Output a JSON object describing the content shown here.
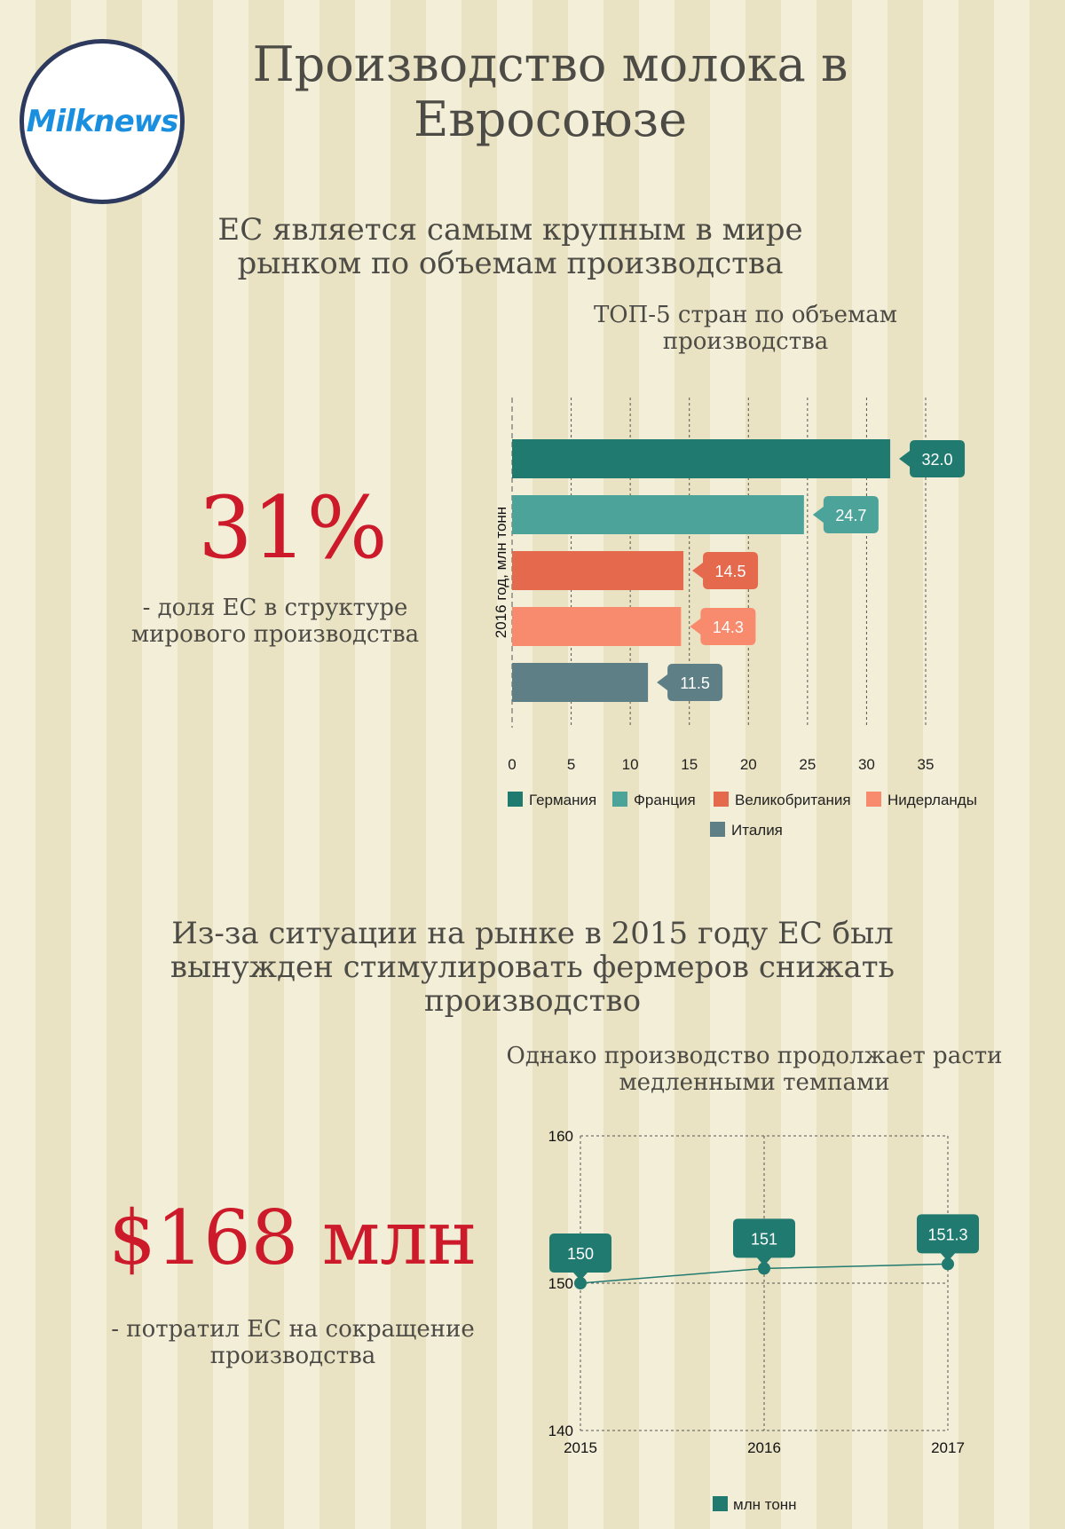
{
  "logo": {
    "text": "Milknews"
  },
  "header": {
    "title": "Производство молока в Евросоюзе"
  },
  "section1": {
    "subtitle": "ЕС является самым крупным в мире рынком по объемам производства",
    "stat_value": "31%",
    "stat_desc": "- доля ЕС в структуре мирового производства"
  },
  "section2": {
    "subtitle": "Из-за ситуации на рынке в 2015 году ЕС был вынужден стимулировать фермеров снижать производство",
    "stat_value": "$168 млн",
    "stat_desc": "- потратил ЕС на сокращение производства"
  },
  "chart_data": [
    {
      "type": "bar",
      "orientation": "horizontal",
      "title": "ТОП-5 стран по объемам производства",
      "ylabel": "2016 год, млн тонн",
      "xlim": [
        0,
        35
      ],
      "xticks": [
        0,
        5,
        10,
        15,
        20,
        25,
        30,
        35
      ],
      "grid": true,
      "legend_position": "bottom",
      "categories": [
        "Германия",
        "Франция",
        "Великобритания",
        "Нидерланды",
        "Италия"
      ],
      "values": [
        32.0,
        24.7,
        14.5,
        14.3,
        11.5
      ],
      "value_labels": [
        "32.0",
        "24.7",
        "14.5",
        "14.3",
        "11.5"
      ],
      "colors": [
        "#217a6f",
        "#4ba39a",
        "#e4694d",
        "#f88a6d",
        "#5e7f85"
      ]
    },
    {
      "type": "line",
      "title": "Однако производство продолжает расти медленными темпами",
      "x": [
        "2015",
        "2016",
        "2017"
      ],
      "ylim": [
        140,
        160
      ],
      "yticks": [
        140,
        150,
        160
      ],
      "grid": true,
      "legend_position": "bottom",
      "series": [
        {
          "name": "млн тонн",
          "values": [
            150,
            151,
            151.3
          ],
          "value_labels": [
            "150",
            "151",
            "151.3"
          ],
          "color": "#217a6f"
        }
      ]
    }
  ]
}
